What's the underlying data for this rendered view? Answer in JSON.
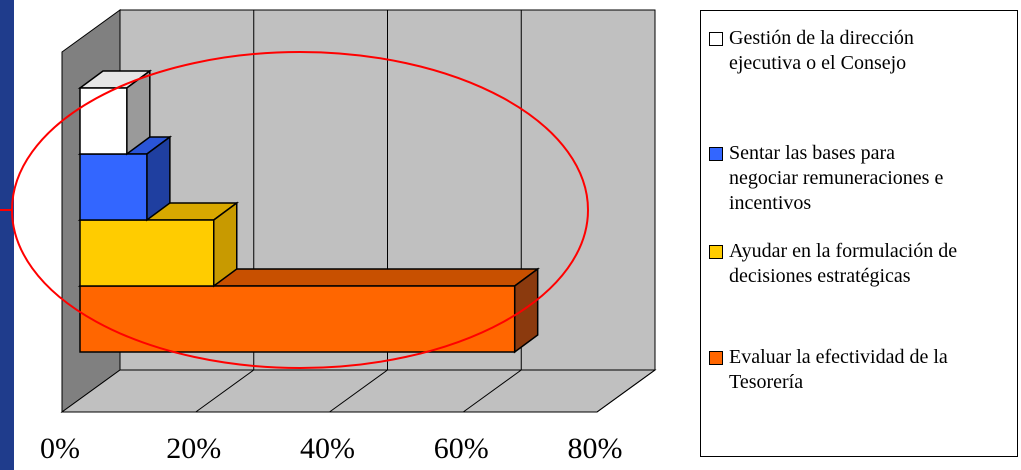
{
  "chart_data": {
    "type": "bar",
    "orientation": "horizontal",
    "style": "3d-stacked-steps",
    "xlim": [
      0,
      80
    ],
    "x_ticks": [
      "0%",
      "20%",
      "40%",
      "60%",
      "80%"
    ],
    "gridlines": true,
    "legend_position": "right",
    "series": [
      {
        "name": "Evaluar la efectividad de la Tesorería",
        "value": 65,
        "color": "#ff6600",
        "side_color": "#8b3a0e",
        "top_color": "#c85000"
      },
      {
        "name": "Ayudar en la formulación de decisiones estratégicas",
        "value": 20,
        "color": "#ffcc00",
        "side_color": "#c89a00",
        "top_color": "#d8a800"
      },
      {
        "name": "Sentar las bases para negociar remuneraciones e incentivos",
        "value": 10,
        "color": "#3366ff",
        "side_color": "#1f3fa0",
        "top_color": "#2a55d8"
      },
      {
        "name": "Gestión de la dirección ejecutiva o el Consejo",
        "value": 7,
        "color": "#ffffff",
        "side_color": "#9a9a9a",
        "top_color": "#e6e6e6"
      }
    ],
    "highlight_color": "#ff0000"
  },
  "legend": {
    "items": [
      {
        "label_lines": [
          "Gestión de la dirección",
          "ejecutiva o el Consejo"
        ],
        "color": "#ffffff"
      },
      {
        "label_lines": [
          "Sentar las bases para",
          "negociar remuneraciones e",
          "incentivos"
        ],
        "color": "#3366ff"
      },
      {
        "label_lines": [
          "Ayudar en la formulación de",
          "decisiones estratégicas"
        ],
        "color": "#ffcc00"
      },
      {
        "label_lines": [
          "Evaluar la efectividad de la",
          "Tesorería"
        ],
        "color": "#ff6600"
      }
    ]
  }
}
